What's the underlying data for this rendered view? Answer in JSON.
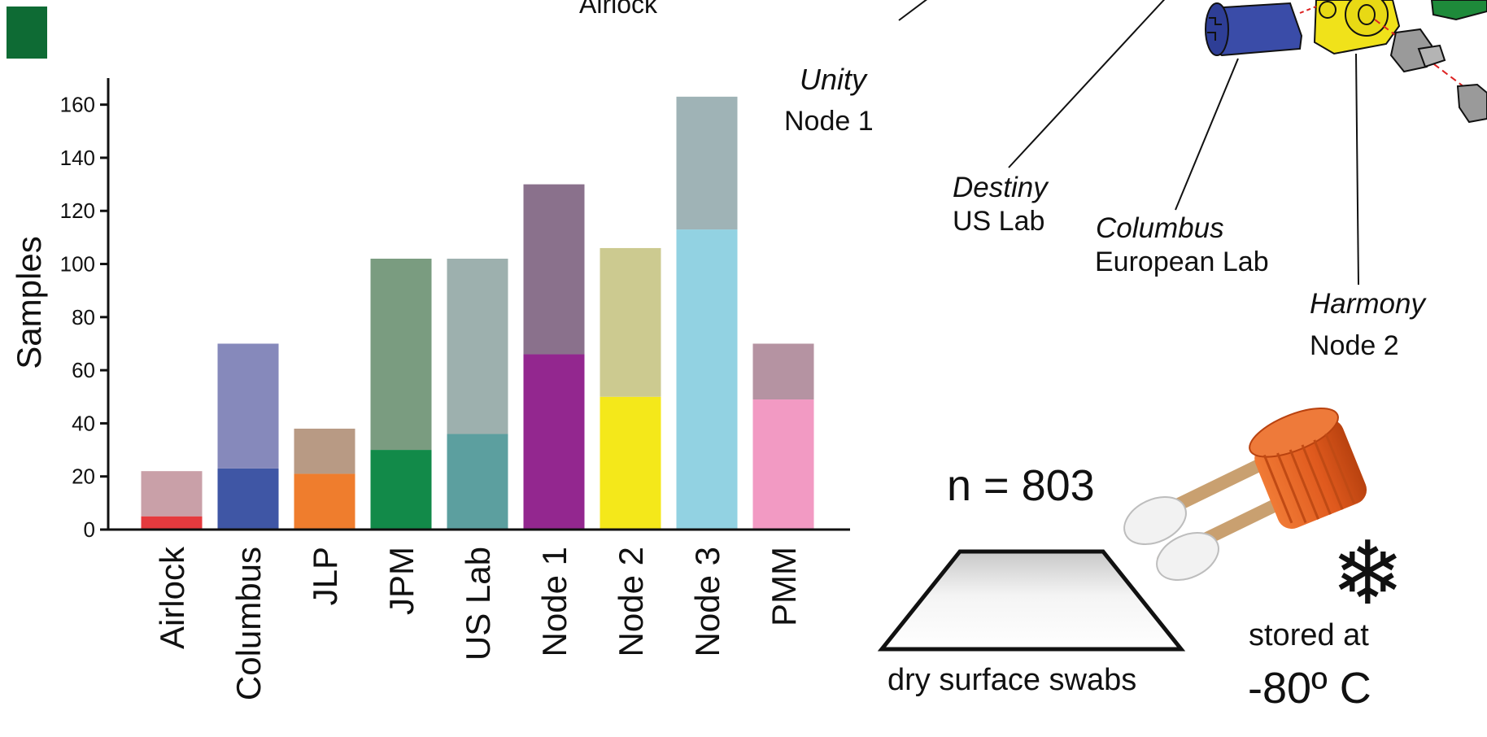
{
  "chart_data": {
    "type": "bar",
    "stacked": true,
    "ylabel": "Samples",
    "xlabel": "",
    "ylim": [
      0,
      170
    ],
    "yticks": [
      0,
      20,
      40,
      60,
      80,
      100,
      120,
      140,
      160
    ],
    "yticks_text": [
      "0",
      "20",
      "40",
      "60",
      "80",
      "100",
      "120",
      "140",
      "160"
    ],
    "categories": [
      "Airlock",
      "Columbus",
      "JLP",
      "JPM",
      "US Lab",
      "Node 1",
      "Node 2",
      "Node 3",
      "PMM"
    ],
    "series": [
      {
        "values": [
          5,
          23,
          21,
          30,
          36,
          66,
          50,
          113,
          49
        ]
      },
      {
        "values": [
          17,
          47,
          17,
          72,
          66,
          64,
          56,
          50,
          21
        ]
      }
    ],
    "colors_bottom": [
      "#e53a3e",
      "#3f56a5",
      "#ef7d2d",
      "#128a49",
      "#5c9f9f",
      "#93278f",
      "#f4e81a",
      "#92d2e2",
      "#f29ac3"
    ],
    "colors_top": [
      "#c9a0a8",
      "#8689bb",
      "#b89a84",
      "#7a9c80",
      "#9db0ae",
      "#8a718c",
      "#ccca90",
      "#9fb3b6",
      "#b593a2"
    ],
    "grid": false,
    "legend": "none"
  },
  "map": {
    "top_label": "Airlock",
    "modules": [
      {
        "name": "Unity",
        "desc": "Node 1"
      },
      {
        "name": "Destiny",
        "desc": "US Lab"
      },
      {
        "name": "Columbus",
        "desc": "European Lab"
      },
      {
        "name": "Harmony",
        "desc": "Node 2"
      }
    ],
    "colors": {
      "blue": "#3a4ca8",
      "yellow": "#f0e21a",
      "gray": "#9a9a9a",
      "green": "#1e8a3a",
      "tag": "#0e6b34"
    }
  },
  "sampling": {
    "count": "n = 803",
    "swab_caption": "dry surface swabs",
    "storage_line1": "stored at",
    "storage_line2": "-80º C",
    "snowflake": "❄",
    "cap_color": "#e05a1e"
  }
}
